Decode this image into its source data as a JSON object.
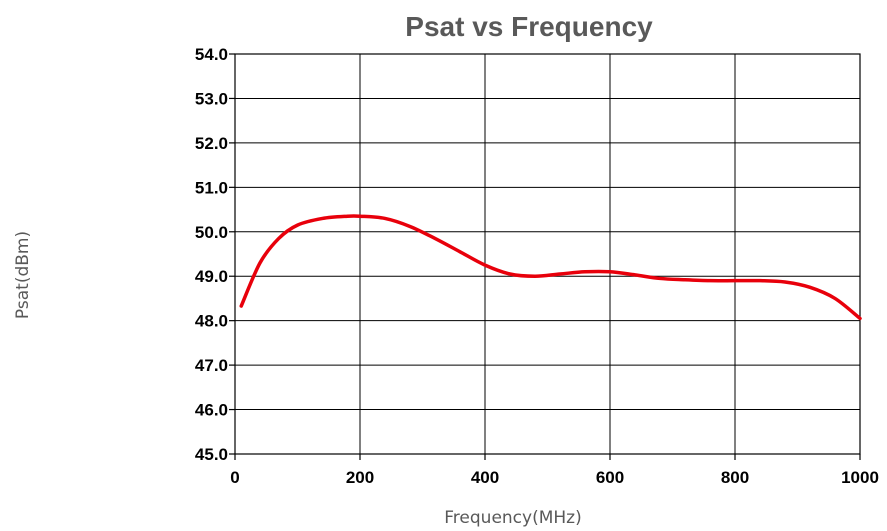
{
  "chart_data": {
    "type": "line",
    "title": "Psat vs Frequency",
    "xlabel": "Frequency(MHz)",
    "ylabel": "Psat(dBm)",
    "xlim": [
      0,
      1000
    ],
    "ylim": [
      45.0,
      54.0
    ],
    "xticks": [
      "0",
      "200",
      "400",
      "600",
      "800",
      "1000"
    ],
    "yticks": [
      "45.0",
      "46.0",
      "47.0",
      "48.0",
      "49.0",
      "50.0",
      "51.0",
      "52.0",
      "53.0",
      "54.0"
    ],
    "grid": true,
    "series": [
      {
        "color": "#e8000b",
        "x": [
          10,
          40,
          70,
          100,
          140,
          180,
          200,
          240,
          280,
          320,
          360,
          400,
          440,
          480,
          520,
          560,
          600,
          640,
          680,
          720,
          760,
          800,
          840,
          880,
          920,
          960,
          1000
        ],
        "y": [
          48.33,
          49.3,
          49.85,
          50.15,
          50.3,
          50.35,
          50.35,
          50.3,
          50.12,
          49.85,
          49.55,
          49.25,
          49.05,
          49.0,
          49.05,
          49.1,
          49.1,
          49.03,
          48.95,
          48.92,
          48.9,
          48.9,
          48.9,
          48.87,
          48.75,
          48.5,
          48.05
        ]
      }
    ]
  }
}
